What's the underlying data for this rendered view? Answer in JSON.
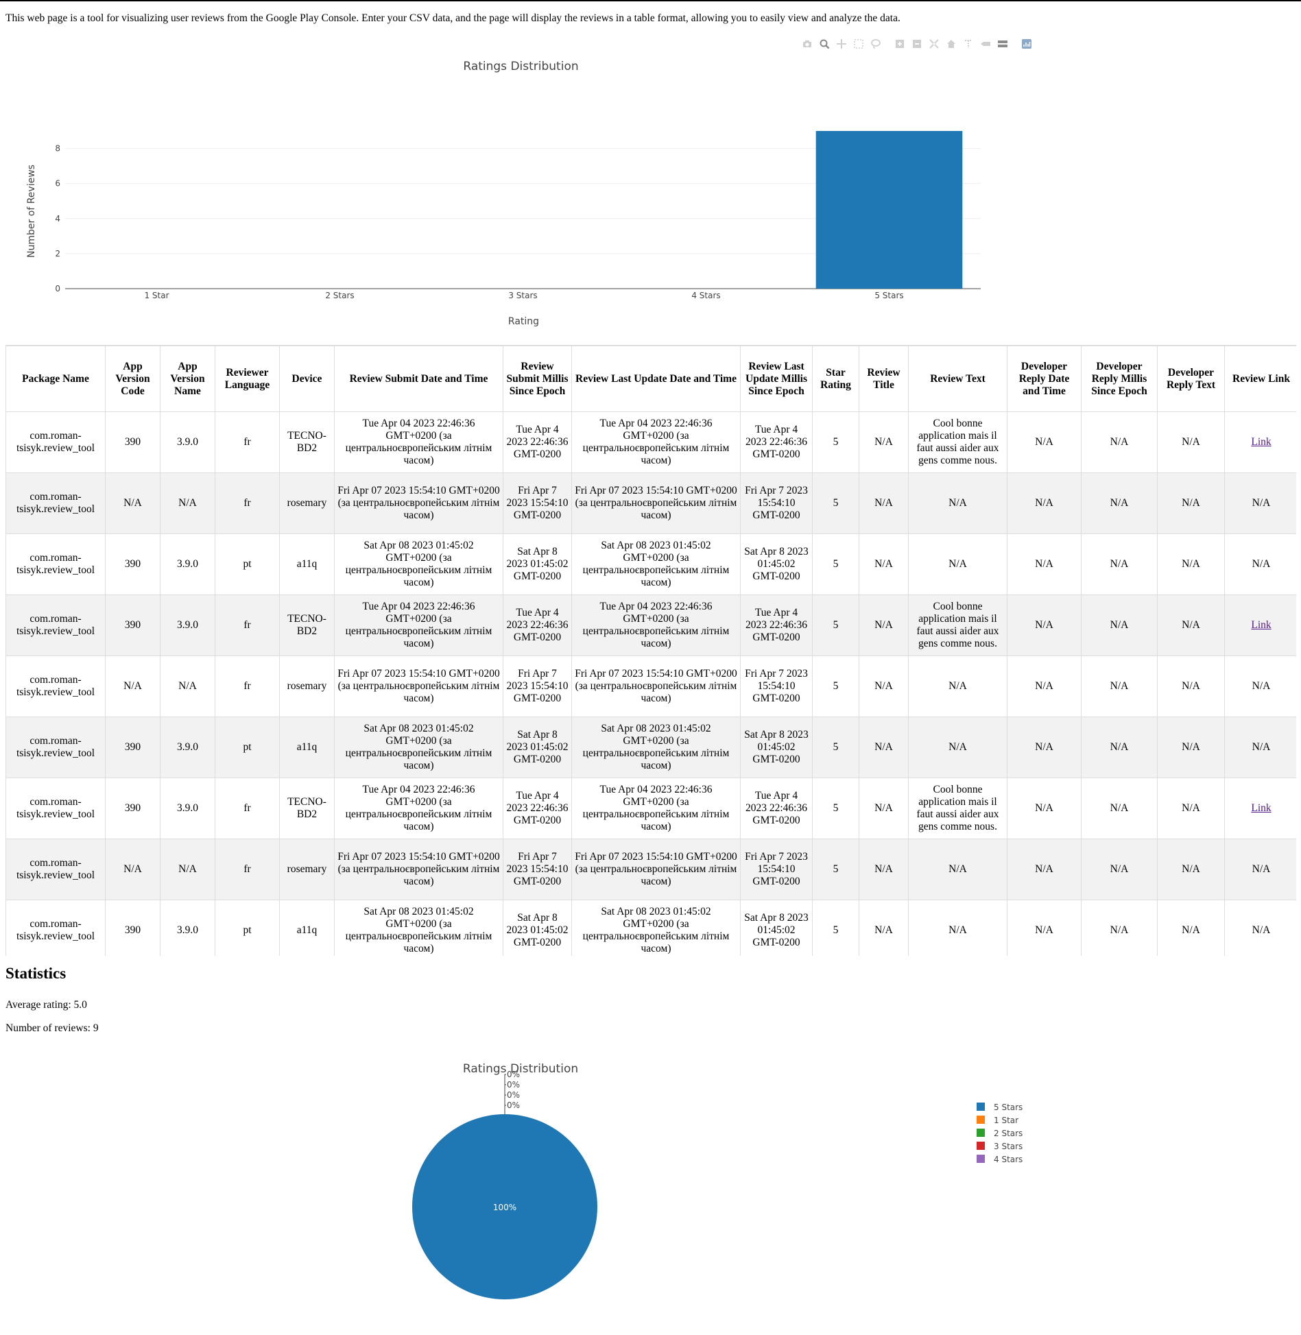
{
  "intro_text": "This web page is a tool for visualizing user reviews from the Google Play Console. Enter your CSV data, and the page will display the reviews in a table format, allowing you to easily view and analyze the data.",
  "modebar": {
    "icons": [
      "camera-icon",
      "zoom-icon",
      "pan-icon",
      "box-select-icon",
      "lasso-icon",
      "zoom-in-icon",
      "zoom-out-icon",
      "autoscale-icon",
      "reset-axes-icon",
      "spike-lines-icon",
      "hover-closest-icon",
      "hover-compare-icon",
      "plotly-logo-icon"
    ]
  },
  "colors": {
    "bar": "#1f77b4",
    "pie": [
      "#1f77b4",
      "#ff7f0e",
      "#2ca02c",
      "#d62728",
      "#9467bd"
    ],
    "grid": "#eeeeee",
    "axis_text": "#444444",
    "row_alt": "#f2f2f2",
    "link": "#551a8b"
  },
  "chart_data": [
    {
      "type": "bar",
      "title": "Ratings Distribution",
      "xlabel": "Rating",
      "ylabel": "Number of Reviews",
      "categories": [
        "1 Star",
        "2 Stars",
        "3 Stars",
        "4 Stars",
        "5 Stars"
      ],
      "values": [
        0,
        0,
        0,
        0,
        9
      ],
      "ylim": [
        0,
        9.47
      ],
      "yticks": [
        0,
        2,
        4,
        6,
        8
      ],
      "grid": true
    },
    {
      "type": "pie",
      "title": "Ratings Distribution",
      "labels": [
        "5 Stars",
        "1 Star",
        "2 Stars",
        "3 Stars",
        "4 Stars"
      ],
      "values": [
        9,
        0,
        0,
        0,
        0
      ],
      "slice_labels": [
        "100%",
        "0%",
        "0%",
        "0%",
        "0%"
      ],
      "legend": "right"
    }
  ],
  "table": {
    "headers": [
      "Package Name",
      "App Version Code",
      "App Version Name",
      "Reviewer Language",
      "Device",
      "Review Submit Date and Time",
      "Review Submit Millis Since Epoch",
      "Review Last Update Date and Time",
      "Review Last Update Millis Since Epoch",
      "Star Rating",
      "Review Title",
      "Review Text",
      "Developer Reply Date and Time",
      "Developer Reply Millis Since Epoch",
      "Developer Reply Text",
      "Review Link"
    ],
    "rows": [
      [
        "com.roman-tsisyk.review_tool",
        "390",
        "3.9.0",
        "fr",
        "TECNO-BD2",
        "Tue Apr 04 2023 22:46:36 GMT+0200 (за центральноєвропейським літнім часом)",
        "Tue Apr 4 2023 22:46:36 GMT-0200",
        "Tue Apr 04 2023 22:46:36 GMT+0200 (за центральноєвропейським літнім часом)",
        "Tue Apr 4 2023 22:46:36 GMT-0200",
        "5",
        "N/A",
        "Cool bonne application mais il faut aussi aider aux gens comme nous.",
        "N/A",
        "N/A",
        "N/A",
        "Link"
      ],
      [
        "com.roman-tsisyk.review_tool",
        "N/A",
        "N/A",
        "fr",
        "rosemary",
        "Fri Apr 07 2023 15:54:10 GMT+0200 (за центральноєвропейським літнім часом)",
        "Fri Apr 7 2023 15:54:10 GMT-0200",
        "Fri Apr 07 2023 15:54:10 GMT+0200 (за центральноєвропейським літнім часом)",
        "Fri Apr 7 2023 15:54:10 GMT-0200",
        "5",
        "N/A",
        "N/A",
        "N/A",
        "N/A",
        "N/A",
        "N/A"
      ],
      [
        "com.roman-tsisyk.review_tool",
        "390",
        "3.9.0",
        "pt",
        "a11q",
        "Sat Apr 08 2023 01:45:02 GMT+0200 (за центральноєвропейським літнім часом)",
        "Sat Apr 8 2023 01:45:02 GMT-0200",
        "Sat Apr 08 2023 01:45:02 GMT+0200 (за центральноєвропейським літнім часом)",
        "Sat Apr 8 2023 01:45:02 GMT-0200",
        "5",
        "N/A",
        "N/A",
        "N/A",
        "N/A",
        "N/A",
        "N/A"
      ],
      [
        "com.roman-tsisyk.review_tool",
        "390",
        "3.9.0",
        "fr",
        "TECNO-BD2",
        "Tue Apr 04 2023 22:46:36 GMT+0200 (за центральноєвропейським літнім часом)",
        "Tue Apr 4 2023 22:46:36 GMT-0200",
        "Tue Apr 04 2023 22:46:36 GMT+0200 (за центральноєвропейським літнім часом)",
        "Tue Apr 4 2023 22:46:36 GMT-0200",
        "5",
        "N/A",
        "Cool bonne application mais il faut aussi aider aux gens comme nous.",
        "N/A",
        "N/A",
        "N/A",
        "Link"
      ],
      [
        "com.roman-tsisyk.review_tool",
        "N/A",
        "N/A",
        "fr",
        "rosemary",
        "Fri Apr 07 2023 15:54:10 GMT+0200 (за центральноєвропейським літнім часом)",
        "Fri Apr 7 2023 15:54:10 GMT-0200",
        "Fri Apr 07 2023 15:54:10 GMT+0200 (за центральноєвропейським літнім часом)",
        "Fri Apr 7 2023 15:54:10 GMT-0200",
        "5",
        "N/A",
        "N/A",
        "N/A",
        "N/A",
        "N/A",
        "N/A"
      ],
      [
        "com.roman-tsisyk.review_tool",
        "390",
        "3.9.0",
        "pt",
        "a11q",
        "Sat Apr 08 2023 01:45:02 GMT+0200 (за центральноєвропейським літнім часом)",
        "Sat Apr 8 2023 01:45:02 GMT-0200",
        "Sat Apr 08 2023 01:45:02 GMT+0200 (за центральноєвропейським літнім часом)",
        "Sat Apr 8 2023 01:45:02 GMT-0200",
        "5",
        "N/A",
        "N/A",
        "N/A",
        "N/A",
        "N/A",
        "N/A"
      ],
      [
        "com.roman-tsisyk.review_tool",
        "390",
        "3.9.0",
        "fr",
        "TECNO-BD2",
        "Tue Apr 04 2023 22:46:36 GMT+0200 (за центральноєвропейським літнім часом)",
        "Tue Apr 4 2023 22:46:36 GMT-0200",
        "Tue Apr 04 2023 22:46:36 GMT+0200 (за центральноєвропейським літнім часом)",
        "Tue Apr 4 2023 22:46:36 GMT-0200",
        "5",
        "N/A",
        "Cool bonne application mais il faut aussi aider aux gens comme nous.",
        "N/A",
        "N/A",
        "N/A",
        "Link"
      ],
      [
        "com.roman-tsisyk.review_tool",
        "N/A",
        "N/A",
        "fr",
        "rosemary",
        "Fri Apr 07 2023 15:54:10 GMT+0200 (за центральноєвропейським літнім часом)",
        "Fri Apr 7 2023 15:54:10 GMT-0200",
        "Fri Apr 07 2023 15:54:10 GMT+0200 (за центральноєвропейським літнім часом)",
        "Fri Apr 7 2023 15:54:10 GMT-0200",
        "5",
        "N/A",
        "N/A",
        "N/A",
        "N/A",
        "N/A",
        "N/A"
      ],
      [
        "com.roman-tsisyk.review_tool",
        "390",
        "3.9.0",
        "pt",
        "a11q",
        "Sat Apr 08 2023 01:45:02 GMT+0200 (за центральноєвропейським літнім часом)",
        "Sat Apr 8 2023 01:45:02 GMT-0200",
        "Sat Apr 08 2023 01:45:02 GMT+0200 (за центральноєвропейським літнім часом)",
        "Sat Apr 8 2023 01:45:02 GMT-0200",
        "5",
        "N/A",
        "N/A",
        "N/A",
        "N/A",
        "N/A",
        "N/A"
      ]
    ]
  },
  "statistics": {
    "title": "Statistics",
    "average_rating": "Average rating: 5.0",
    "review_count": "Number of reviews: 9"
  }
}
